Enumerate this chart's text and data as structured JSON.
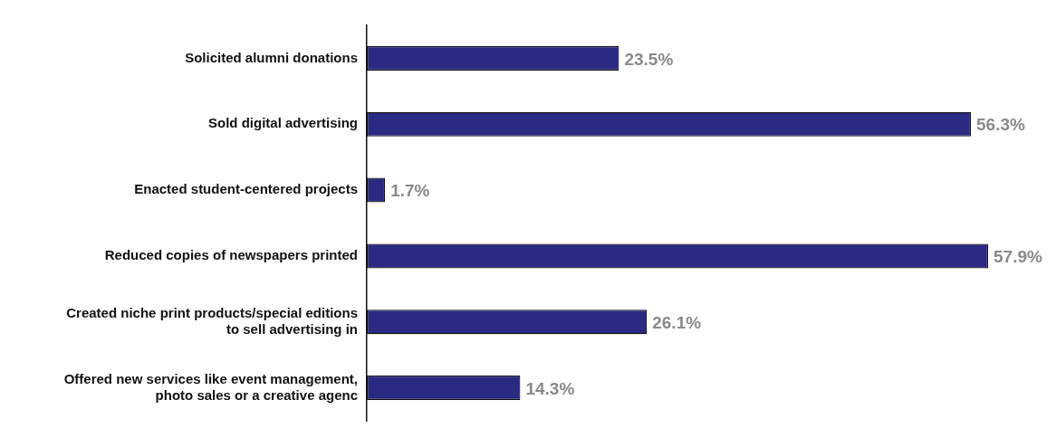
{
  "chart_data": {
    "type": "bar",
    "orientation": "horizontal",
    "categories": [
      "Solicited alumni donations",
      "Sold digital advertising",
      "Enacted student-centered projects",
      "Reduced copies of newspapers printed",
      "Created niche print products/special editions\nto sell advertising in",
      "Offered new services like event management,\nphoto sales or a creative agenc"
    ],
    "values": [
      23.5,
      56.3,
      1.7,
      57.9,
      26.1,
      14.3
    ],
    "value_labels": [
      "23.5%",
      "56.3%",
      "1.7%",
      "57.9%",
      "26.1%",
      "14.3%"
    ],
    "color": "#2b2a82",
    "grid": false,
    "legend": false
  }
}
